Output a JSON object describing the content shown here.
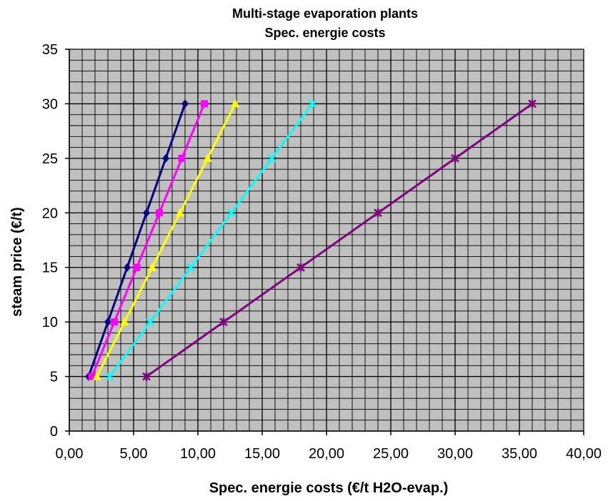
{
  "chart_data": {
    "type": "line",
    "title": "Multi-stage evaporation plants",
    "subtitle": "Spec. energie costs",
    "xlabel": "Spec. energie costs   (€/t H2O-evap.)",
    "ylabel": "steam price (€/t)",
    "xlim": [
      0,
      40
    ],
    "ylim": [
      0,
      35
    ],
    "x_ticks": [
      "0,00",
      "5,00",
      "10,00",
      "15,00",
      "20,00",
      "25,00",
      "30,00",
      "35,00",
      "40,00"
    ],
    "y_ticks": [
      "0",
      "5",
      "10",
      "15",
      "20",
      "25",
      "30",
      "35"
    ],
    "grid": true,
    "plot_background": "#c0c0c0",
    "grid_color": "#000000",
    "series": [
      {
        "color": "#000080",
        "marker": "diamond",
        "x": [
          1.5,
          3.0,
          4.5,
          6.0,
          7.5,
          9.0
        ],
        "y": [
          5,
          10,
          15,
          20,
          25,
          30
        ]
      },
      {
        "color": "#ff00ff",
        "marker": "square",
        "x": [
          1.75,
          3.5,
          5.25,
          7.0,
          8.75,
          10.5
        ],
        "y": [
          5,
          10,
          15,
          20,
          25,
          30
        ]
      },
      {
        "color": "#ffff00",
        "marker": "triangle",
        "x": [
          2.15,
          4.3,
          6.45,
          8.6,
          10.75,
          12.9
        ],
        "y": [
          5,
          10,
          15,
          20,
          25,
          30
        ]
      },
      {
        "color": "#00ffff",
        "marker": "x",
        "x": [
          3.15,
          6.3,
          9.45,
          12.6,
          15.75,
          18.9
        ],
        "y": [
          5,
          10,
          15,
          20,
          25,
          30
        ]
      },
      {
        "color": "#800080",
        "marker": "star",
        "x": [
          6.0,
          12.0,
          18.0,
          24.0,
          30.0,
          36.0
        ],
        "y": [
          5,
          10,
          15,
          20,
          25,
          30
        ]
      }
    ]
  }
}
